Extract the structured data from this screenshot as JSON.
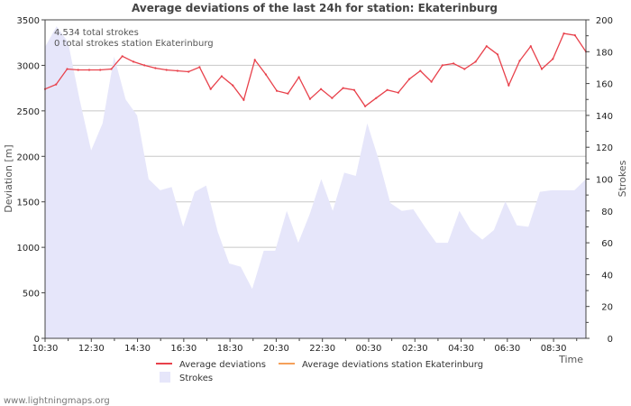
{
  "chart_data": {
    "type": "line",
    "title": "Average deviations of the last 24h for station: Ekaterinburg",
    "ylabel": "Deviation  [m]",
    "y2label": "Strokes",
    "xlabel": "Time",
    "ylim": [
      0,
      3500
    ],
    "y2lim": [
      0,
      200
    ],
    "x_tick_labels": [
      "10:30",
      "12:30",
      "14:30",
      "16:30",
      "18:30",
      "20:30",
      "22:30",
      "00:30",
      "02:30",
      "04:30",
      "06:30",
      "08:30"
    ],
    "y_ticks": [
      0,
      500,
      1000,
      1500,
      2000,
      2500,
      3000,
      3500
    ],
    "y2_ticks": [
      0,
      20,
      40,
      60,
      80,
      100,
      120,
      140,
      160,
      180,
      200
    ],
    "series": [
      {
        "name": "Average deviations",
        "color": "#e8414b",
        "values": [
          2740,
          2790,
          2960,
          2950,
          2950,
          2950,
          2960,
          3100,
          3040,
          3000,
          2970,
          2950,
          2940,
          2930,
          2980,
          2740,
          2880,
          2780,
          2620,
          3060,
          2900,
          2720,
          2690,
          2870,
          2630,
          2740,
          2640,
          2750,
          2730,
          2550,
          2640,
          2730,
          2700,
          2850,
          2940,
          2820,
          3000,
          3020,
          2960,
          3040,
          3210,
          3120,
          2780,
          3050,
          3210,
          2960,
          3070,
          3350,
          3330,
          3150
        ]
      },
      {
        "name": "Average deviations station Ekaterinburg",
        "color": "#f5a05a",
        "values": []
      },
      {
        "name": "Strokes",
        "color": "#e6e6fa",
        "axis": "right",
        "values": [
          183,
          196,
          186,
          150,
          118,
          135,
          177,
          150,
          140,
          100,
          93,
          95,
          70,
          92,
          96,
          67,
          47,
          45,
          31,
          55,
          55,
          80,
          60,
          78,
          100,
          80,
          104,
          102,
          135,
          112,
          85,
          80,
          81,
          70,
          60,
          60,
          80,
          68,
          62,
          68,
          86,
          71,
          70,
          92,
          93,
          93,
          93,
          100
        ]
      }
    ],
    "info_lines": [
      "4.534 total strokes",
      "0 total strokes station Ekaterinburg"
    ],
    "grid": true,
    "legend_position": "bottom"
  },
  "credit": "www.lightningmaps.org",
  "colors": {
    "plot_border": "#444444",
    "grid": "#c8c8c8"
  }
}
